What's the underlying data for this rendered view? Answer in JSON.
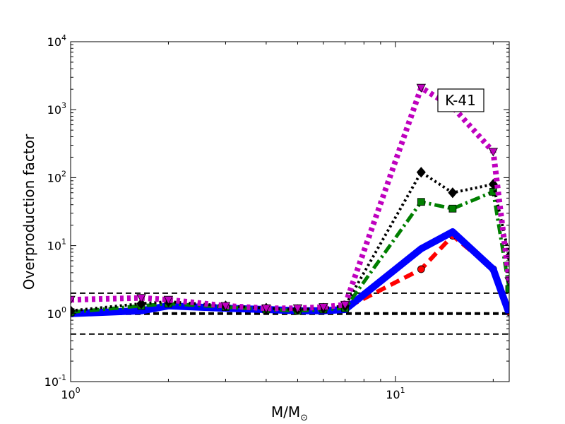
{
  "chart_data": {
    "type": "line",
    "title": "",
    "xlabel_main": "M/M",
    "xlabel_sub": "⊙",
    "ylabel": "Overproduction factor",
    "xscale": "log",
    "yscale": "log",
    "xlim": [
      1,
      22.4
    ],
    "ylim": [
      0.1,
      10000
    ],
    "x_ticks": [
      {
        "value": 1,
        "base": "10",
        "exp": "0"
      },
      {
        "value": 10,
        "base": "10",
        "exp": "1"
      }
    ],
    "y_ticks": [
      {
        "value": 0.1,
        "base": "10",
        "exp": "-1"
      },
      {
        "value": 1,
        "base": "10",
        "exp": "0"
      },
      {
        "value": 10,
        "base": "10",
        "exp": "1"
      },
      {
        "value": 100,
        "base": "10",
        "exp": "2"
      },
      {
        "value": 1000,
        "base": "10",
        "exp": "3"
      },
      {
        "value": 10000,
        "base": "10",
        "exp": "4"
      }
    ],
    "annotation": "K-41",
    "reference_lines": [
      {
        "y": 2.0,
        "style": "dashed",
        "width": 2
      },
      {
        "y": 1.0,
        "style": "dashed",
        "width": 4
      },
      {
        "y": 0.5,
        "style": "dashed",
        "width": 2
      }
    ],
    "series": [
      {
        "color": "#ff0000",
        "style": "dashed",
        "marker": "circle",
        "x": [
          1,
          1.65,
          2,
          3,
          4,
          5,
          6,
          7,
          12,
          15,
          20,
          22.4
        ],
        "y": [
          1.05,
          1.15,
          1.35,
          1.25,
          1.15,
          1.1,
          1.1,
          1.2,
          4.5,
          14,
          4.5,
          1.05
        ]
      },
      {
        "color": "#0000ff",
        "style": "solid",
        "marker": "none",
        "x": [
          1,
          1.65,
          2,
          3,
          4,
          5,
          6,
          7,
          12,
          15,
          20,
          22.4
        ],
        "y": [
          1.0,
          1.1,
          1.3,
          1.2,
          1.15,
          1.1,
          1.1,
          1.15,
          9,
          16,
          4.5,
          1.0
        ]
      },
      {
        "color": "#007f00",
        "style": "dashdot",
        "marker": "square",
        "x": [
          1,
          1.65,
          2,
          3,
          4,
          5,
          6,
          7,
          12,
          15,
          20,
          22.4
        ],
        "y": [
          1.05,
          1.3,
          1.4,
          1.25,
          1.15,
          1.1,
          1.15,
          1.2,
          44,
          35,
          62,
          2.3
        ]
      },
      {
        "color": "#000000",
        "style": "dotted",
        "marker": "diamond",
        "x": [
          1,
          1.65,
          2,
          3,
          4,
          5,
          6,
          7,
          12,
          15,
          20,
          22.4
        ],
        "y": [
          1.1,
          1.4,
          1.5,
          1.3,
          1.2,
          1.15,
          1.2,
          1.3,
          120,
          60,
          80,
          7
        ]
      },
      {
        "color": "#bf00bf",
        "style": "dotted",
        "marker": "triangle-down",
        "x": [
          1,
          1.65,
          2,
          3,
          4,
          5,
          6,
          7,
          12,
          15,
          20,
          22.4
        ],
        "y": [
          1.6,
          1.7,
          1.6,
          1.3,
          1.2,
          1.2,
          1.25,
          1.35,
          2100,
          1100,
          240,
          3
        ]
      }
    ]
  }
}
